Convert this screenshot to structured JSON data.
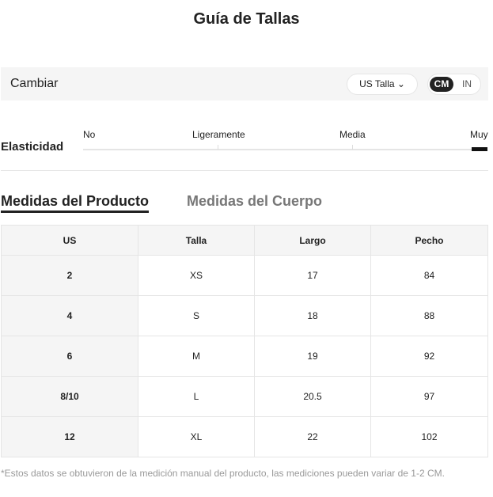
{
  "title": "Guía de Tallas",
  "bar": {
    "label": "Cambiar",
    "size_select": "US Talla",
    "units": [
      "CM",
      "IN"
    ],
    "active_unit": "CM"
  },
  "elasticity": {
    "label": "Elasticidad",
    "levels": [
      "No",
      "Ligeramente",
      "Media",
      "Muy"
    ],
    "selected": "Muy"
  },
  "tabs": [
    "Medidas del Producto",
    "Medidas del Cuerpo"
  ],
  "table": {
    "headers": [
      "US",
      "Talla",
      "Largo",
      "Pecho"
    ],
    "rows": [
      [
        "2",
        "XS",
        "17",
        "84"
      ],
      [
        "4",
        "S",
        "18",
        "88"
      ],
      [
        "6",
        "M",
        "19",
        "92"
      ],
      [
        "8/10",
        "L",
        "20.5",
        "97"
      ],
      [
        "12",
        "XL",
        "22",
        "102"
      ]
    ]
  },
  "note": "*Estos datos se obtuvieron de la medición manual del producto, las mediciones pueden variar de 1-2 CM."
}
